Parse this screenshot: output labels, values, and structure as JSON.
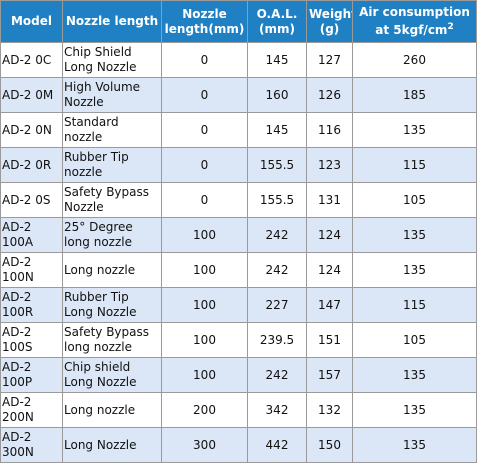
{
  "table": {
    "headers": [
      "Model",
      "Nozzle length",
      "Nozzle length(mm)",
      "O.A.L. (mm)",
      "Weight (g)",
      "Air consumption at 5kgf/cm"
    ],
    "header_superscript": "2",
    "rows": [
      [
        "AD-2 0C",
        "Chip Shield Long Nozzle",
        0,
        145,
        127,
        260
      ],
      [
        "AD-2 0M",
        "High Volume Nozzle",
        0,
        160,
        126,
        185
      ],
      [
        "AD-2 0N",
        "Standard nozzle",
        0,
        145,
        116,
        135
      ],
      [
        "AD-2 0R",
        "Rubber Tip nozzle",
        0,
        155.5,
        123,
        115
      ],
      [
        "AD-2 0S",
        "Safety Bypass Nozzle",
        0,
        155.5,
        131,
        105
      ],
      [
        "AD-2 100A",
        "25° Degree long nozzle",
        100,
        242,
        124,
        135
      ],
      [
        "AD-2 100N",
        "Long nozzle",
        100,
        242,
        124,
        135
      ],
      [
        "AD-2 100R",
        "Rubber Tip Long Nozzle",
        100,
        227,
        147,
        115
      ],
      [
        "AD-2 100S",
        "Safety Bypass long nozzle",
        100,
        239.5,
        151,
        105
      ],
      [
        "AD-2 100P",
        "Chip shield Long Nozzle",
        100,
        242,
        157,
        135
      ],
      [
        "AD-2 200N",
        "Long nozzle",
        200,
        342,
        132,
        135
      ],
      [
        "AD-2 300N",
        "Long Nozzle",
        300,
        442,
        150,
        135
      ]
    ]
  }
}
